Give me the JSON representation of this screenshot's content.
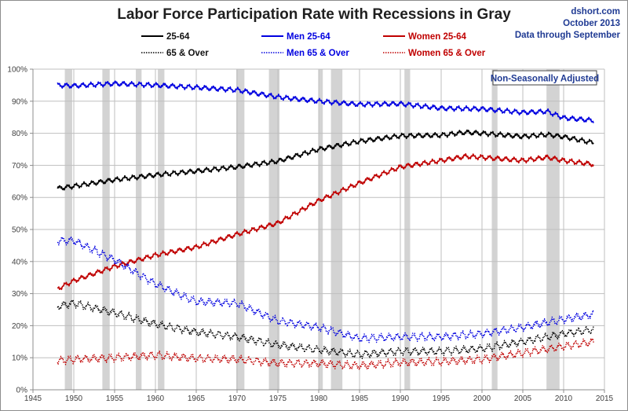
{
  "title": "Labor Force Participation Rate with Recessions in Gray",
  "source": {
    "site": "dshort.com",
    "date": "October 2013",
    "note": "Data through September"
  },
  "annotation": "Non-Seasonally Adjusted",
  "chart_data": {
    "type": "line",
    "title": "Labor Force Participation Rate with Recessions in Gray",
    "xlim": [
      1945,
      2015
    ],
    "ylim": [
      0,
      100
    ],
    "x_ticks": [
      1945,
      1950,
      1955,
      1960,
      1965,
      1970,
      1975,
      1980,
      1985,
      1990,
      1995,
      2000,
      2005,
      2010,
      2015
    ],
    "y_ticks": [
      0,
      10,
      20,
      30,
      40,
      50,
      60,
      70,
      80,
      90,
      100
    ],
    "y_tick_labels": [
      "0%",
      "10%",
      "20%",
      "30%",
      "40%",
      "50%",
      "60%",
      "70%",
      "80%",
      "90%",
      "100%"
    ],
    "grid": true,
    "legend_position": "top",
    "recessions": [
      [
        1948.9,
        1949.8
      ],
      [
        1953.5,
        1954.4
      ],
      [
        1957.6,
        1958.3
      ],
      [
        1960.3,
        1961.1
      ],
      [
        1969.9,
        1970.9
      ],
      [
        1973.9,
        1975.2
      ],
      [
        1980.0,
        1980.5
      ],
      [
        1981.5,
        1982.9
      ],
      [
        1990.5,
        1991.2
      ],
      [
        2001.2,
        2001.9
      ],
      [
        2007.9,
        2009.5
      ]
    ],
    "series": [
      {
        "name": "25-64",
        "color": "#000000",
        "style": "solid",
        "x": [
          1948,
          1950,
          1955,
          1960,
          1965,
          1970,
          1975,
          1980,
          1985,
          1990,
          1995,
          1998,
          2000,
          2005,
          2008,
          2010,
          2013.7
        ],
        "values": [
          62.8,
          63.5,
          65.5,
          67.0,
          68.2,
          69.5,
          71.3,
          75.0,
          77.5,
          79.2,
          79.4,
          80.3,
          80.0,
          79.0,
          79.6,
          78.9,
          77.0
        ]
      },
      {
        "name": "Men 25-64",
        "color": "#0000e0",
        "style": "solid",
        "x": [
          1948,
          1950,
          1955,
          1960,
          1965,
          1970,
          1975,
          1980,
          1985,
          1990,
          1995,
          2000,
          2005,
          2008,
          2010,
          2013.7
        ],
        "values": [
          95.0,
          94.8,
          95.5,
          95.0,
          94.3,
          93.5,
          91.3,
          90.0,
          89.0,
          89.2,
          87.8,
          87.6,
          86.5,
          86.8,
          84.8,
          84.0
        ]
      },
      {
        "name": "Women 25-64",
        "color": "#c00000",
        "style": "solid",
        "x": [
          1948,
          1950,
          1955,
          1960,
          1965,
          1970,
          1975,
          1980,
          1985,
          1990,
          1995,
          1998,
          2000,
          2005,
          2008,
          2010,
          2013.7
        ],
        "values": [
          31.5,
          34.0,
          38.5,
          42.0,
          44.5,
          48.5,
          52.0,
          59.0,
          64.5,
          69.5,
          71.5,
          72.8,
          72.5,
          71.5,
          72.5,
          71.5,
          70.3
        ]
      },
      {
        "name": "65 & Over",
        "color": "#000000",
        "style": "dotted",
        "x": [
          1948,
          1950,
          1955,
          1960,
          1965,
          1970,
          1975,
          1980,
          1985,
          1990,
          1995,
          2000,
          2005,
          2010,
          2013.7
        ],
        "values": [
          26.0,
          27.0,
          24.0,
          20.5,
          18.0,
          16.5,
          14.0,
          12.5,
          11.0,
          12.0,
          12.0,
          12.8,
          15.0,
          17.5,
          18.8
        ]
      },
      {
        "name": "Men 65 & Over",
        "color": "#0000e0",
        "style": "dotted",
        "x": [
          1948,
          1950,
          1955,
          1960,
          1965,
          1970,
          1975,
          1980,
          1985,
          1990,
          1995,
          2000,
          2005,
          2010,
          2013.7
        ],
        "values": [
          46.5,
          46.5,
          40.5,
          33.0,
          27.5,
          27.0,
          21.5,
          19.5,
          16.0,
          16.5,
          16.5,
          17.5,
          19.5,
          22.0,
          23.5
        ]
      },
      {
        "name": "Women 65 & Over",
        "color": "#c00000",
        "style": "dotted",
        "x": [
          1948,
          1950,
          1955,
          1960,
          1965,
          1970,
          1975,
          1980,
          1985,
          1990,
          1995,
          2000,
          2005,
          2010,
          2013.7
        ],
        "values": [
          9.0,
          9.5,
          10.0,
          10.8,
          9.8,
          9.5,
          8.3,
          8.2,
          7.5,
          8.5,
          8.8,
          9.5,
          11.5,
          13.5,
          15.0
        ]
      }
    ]
  }
}
